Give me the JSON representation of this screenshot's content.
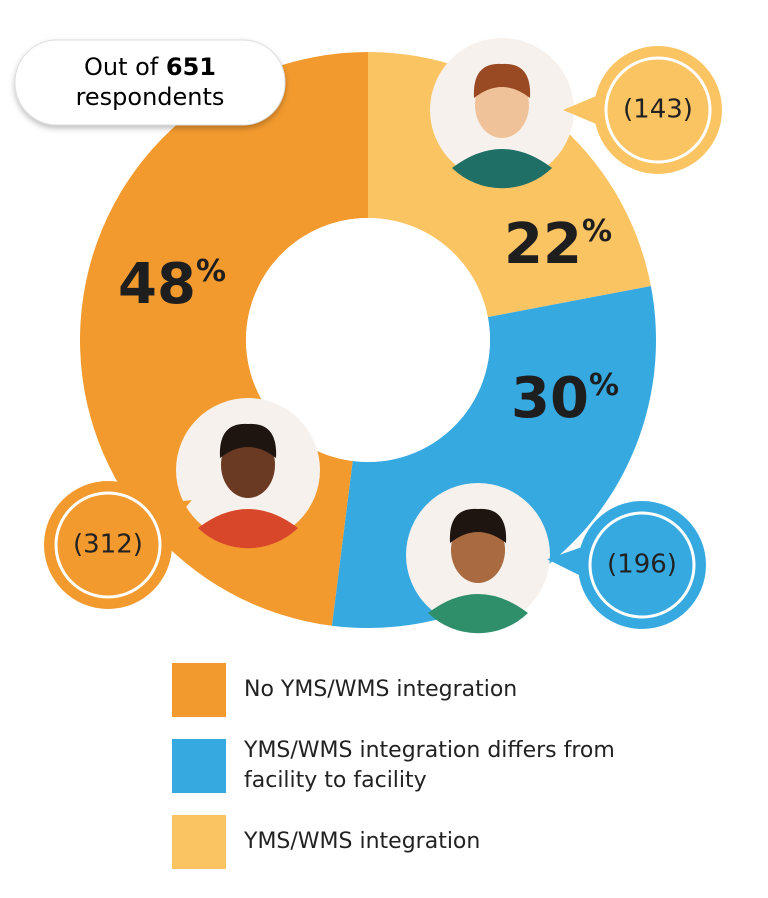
{
  "chart_data": {
    "type": "donut",
    "annotation": {
      "prefix": "Out of",
      "total": 651,
      "suffix": "respondents"
    },
    "categories": [
      "No YMS/WMS integration",
      "YMS/WMS integration differs from facility to facility",
      "YMS/WMS integration"
    ],
    "values": [
      48,
      30,
      22
    ],
    "value_labels": [
      "48%",
      "30%",
      "22%"
    ],
    "counts": [
      312,
      196,
      143
    ],
    "count_labels": [
      "(312)",
      "(196)",
      "(143)"
    ],
    "colors": [
      "#f29a2e",
      "#36a9e1",
      "#fbc463"
    ]
  }
}
